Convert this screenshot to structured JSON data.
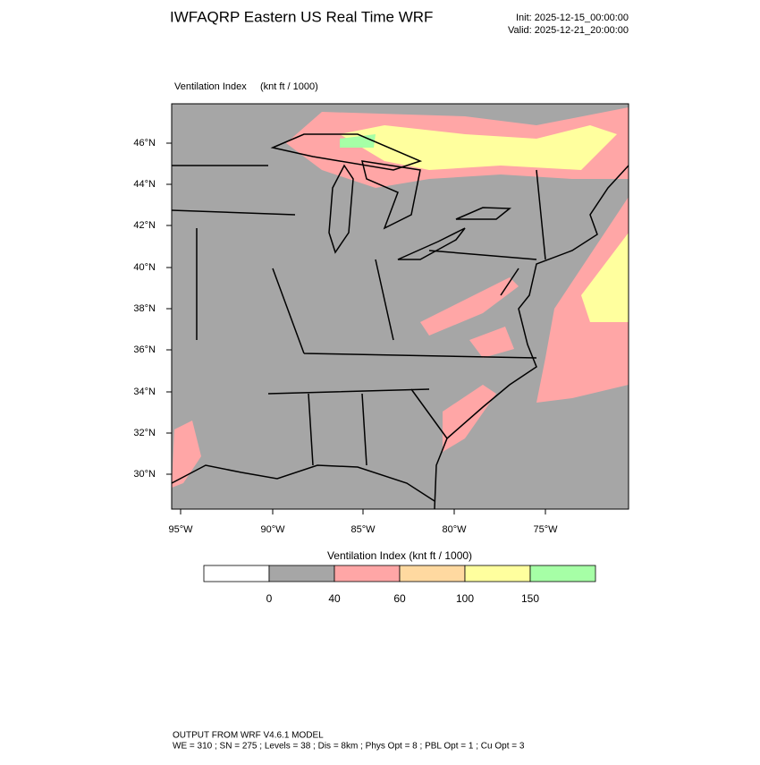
{
  "header": {
    "title": "IWFAQRP Eastern US Real Time WRF",
    "init": "Init: 2025-12-15_00:00:00",
    "valid": "Valid: 2025-12-21_20:00:00"
  },
  "map": {
    "label": "Ventilation Index",
    "units": "(knt ft / 1000)",
    "lat_labels": [
      "46°N",
      "44°N",
      "42°N",
      "40°N",
      "38°N",
      "36°N",
      "34°N",
      "32°N",
      "30°N"
    ],
    "lon_labels": [
      "95°W",
      "90°W",
      "85°W",
      "80°W",
      "75°W"
    ]
  },
  "colorbar": {
    "title": "Ventilation Index  (knt ft / 1000)",
    "colors": [
      "#ffffff",
      "#a6a6a6",
      "#ffa6a6",
      "#ffd9a0",
      "#ffff9e",
      "#a6ffa6"
    ],
    "ticks": [
      0,
      40,
      60,
      100,
      150
    ]
  },
  "footer": {
    "line1": "OUTPUT FROM WRF V4.6.1 MODEL",
    "line2": "WE = 310 ; SN = 275 ; Levels = 38 ; Dis = 8km ; Phys Opt = 8 ; PBL Opt = 1 ; Cu Opt = 3"
  }
}
